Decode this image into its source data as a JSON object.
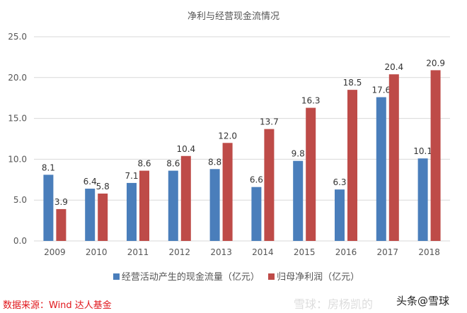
{
  "chart_data": {
    "type": "bar",
    "title": "净利与经营现金流情况",
    "categories": [
      "2009",
      "2010",
      "2011",
      "2012",
      "2013",
      "2014",
      "2015",
      "2016",
      "2017",
      "2018"
    ],
    "series": [
      {
        "name": "经营活动产生的现金流量（亿元）",
        "color": "#4a7ebb",
        "values": [
          8.1,
          6.4,
          7.1,
          8.6,
          8.8,
          6.6,
          9.8,
          6.3,
          17.6,
          10.1
        ]
      },
      {
        "name": "归母净利润（亿元）",
        "color": "#be4b48",
        "values": [
          3.9,
          5.8,
          8.6,
          10.4,
          12.0,
          13.7,
          16.3,
          18.5,
          20.4,
          20.9
        ]
      }
    ],
    "ylim": [
      0,
      25
    ],
    "yticks": [
      "0.0",
      "5.0",
      "10.0",
      "15.0",
      "20.0",
      "25.0"
    ],
    "grid": true,
    "legend": "bottom"
  },
  "source": "数据来源：Wind 达人基金",
  "watermark": "雪球：房杨凯的",
  "brand": "头条@雪球"
}
